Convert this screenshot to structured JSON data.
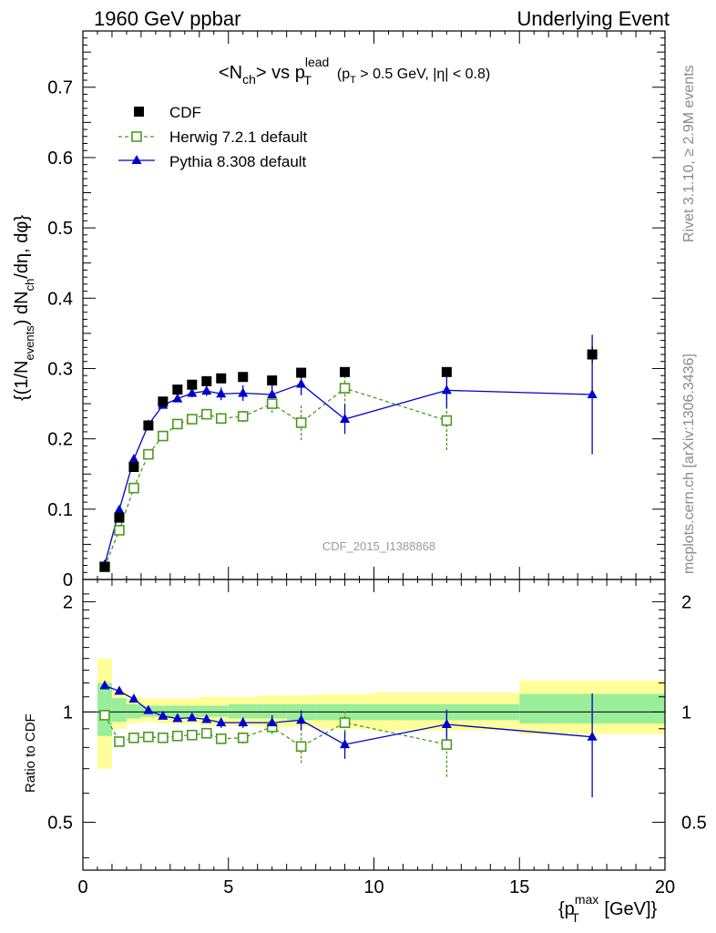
{
  "header": {
    "left": "1960 GeV ppbar",
    "right": "Underlying Event"
  },
  "side_labels": {
    "rivet": "Rivet 3.1.10, ≥ 2.9M events",
    "mcplots": "mcplots.cern.ch [arXiv:1306.3436]"
  },
  "chart_data": {
    "type": "scatter",
    "title": {
      "prefix": "<N",
      "sub1": "ch",
      "mid": "> vs p",
      "sup2": "lead",
      "sub2": "T",
      "cut": "(p",
      "cut_sub": "T",
      "cut_rest": " > 0.5 GeV, |η| < 0.8)"
    },
    "analysis_id": "CDF_2015_I1388868",
    "ylabel": {
      "a": "{(1/N",
      "a_sub": "events",
      "b": ") dN",
      "b_sub": "ch",
      "c": "/dη, dφ}"
    },
    "xlabel": {
      "a": "{p",
      "a_sup": "max",
      "a_sub": "T",
      "b": " [GeV]}"
    },
    "ratio_ylabel": "Ratio to CDF",
    "xlim": [
      0,
      20
    ],
    "ylim": [
      0,
      0.78
    ],
    "ratio_ylim": [
      0.37,
      2.3
    ],
    "x_ticks": [
      "0",
      "5",
      "10",
      "15",
      "20"
    ],
    "y_ticks": [
      "0",
      "0.1",
      "0.2",
      "0.3",
      "0.4",
      "0.5",
      "0.6",
      "0.7"
    ],
    "ratio_ticks": [
      "0.5",
      "1",
      "2"
    ],
    "legend_position": "top-left",
    "series": [
      {
        "name": "CDF",
        "color": "#000000",
        "marker": "square-filled",
        "x": [
          0.75,
          1.25,
          1.75,
          2.25,
          2.75,
          3.25,
          3.75,
          4.25,
          4.75,
          5.5,
          6.5,
          7.5,
          9.0,
          12.5,
          17.5
        ],
        "y": [
          0.018,
          0.088,
          0.16,
          0.219,
          0.253,
          0.27,
          0.277,
          0.282,
          0.286,
          0.288,
          0.283,
          0.294,
          0.295,
          0.295,
          0.32
        ],
        "yerr": [
          0.002,
          0.003,
          0.003,
          0.003,
          0.003,
          0.003,
          0.003,
          0.003,
          0.003,
          0.003,
          0.004,
          0.004,
          0.005,
          0.006,
          0.012
        ]
      },
      {
        "name": "Herwig 7.2.1 default",
        "color": "#4a9a1e",
        "marker": "square-open",
        "line": "dashed",
        "x": [
          0.75,
          1.25,
          1.75,
          2.25,
          2.75,
          3.25,
          3.75,
          4.25,
          4.75,
          5.5,
          6.5,
          7.5,
          9.0,
          12.5
        ],
        "y": [
          0.018,
          0.07,
          0.13,
          0.178,
          0.204,
          0.221,
          0.228,
          0.235,
          0.229,
          0.232,
          0.25,
          0.223,
          0.272,
          0.226
        ],
        "yerr": [
          0.001,
          0.002,
          0.003,
          0.003,
          0.004,
          0.004,
          0.004,
          0.005,
          0.007,
          0.008,
          0.013,
          0.025,
          0.025,
          0.042
        ]
      },
      {
        "name": "Pythia 8.308 default",
        "color": "#0000cc",
        "marker": "triangle-filled",
        "line": "solid",
        "x": [
          0.75,
          1.25,
          1.75,
          2.25,
          2.75,
          3.25,
          3.75,
          4.25,
          4.75,
          5.5,
          6.5,
          7.5,
          9.0,
          12.5,
          17.5
        ],
        "y": [
          0.021,
          0.099,
          0.171,
          0.22,
          0.248,
          0.257,
          0.265,
          0.268,
          0.264,
          0.265,
          0.263,
          0.278,
          0.228,
          0.269,
          0.263
        ],
        "yerr": [
          0.001,
          0.002,
          0.002,
          0.003,
          0.004,
          0.005,
          0.006,
          0.007,
          0.009,
          0.011,
          0.013,
          0.016,
          0.021,
          0.025,
          0.085
        ]
      }
    ],
    "ratio": {
      "bands": {
        "edges": [
          0.5,
          1.0,
          1.5,
          2.0,
          2.5,
          3.0,
          3.5,
          4.0,
          4.5,
          5.0,
          6.0,
          7.0,
          8.0,
          10.0,
          15.0,
          20.0
        ],
        "stat_lo": [
          0.86,
          0.94,
          0.96,
          0.97,
          0.97,
          0.97,
          0.97,
          0.97,
          0.97,
          0.96,
          0.96,
          0.95,
          0.95,
          0.95,
          0.93
        ],
        "stat_hi": [
          1.2,
          1.09,
          1.05,
          1.04,
          1.04,
          1.04,
          1.04,
          1.04,
          1.04,
          1.05,
          1.05,
          1.05,
          1.05,
          1.05,
          1.12
        ],
        "sys_lo": [
          0.7,
          0.9,
          0.93,
          0.94,
          0.93,
          0.93,
          0.93,
          0.92,
          0.92,
          0.92,
          0.91,
          0.91,
          0.9,
          0.89,
          0.87
        ],
        "sys_hi": [
          1.4,
          1.14,
          1.1,
          1.09,
          1.09,
          1.09,
          1.09,
          1.1,
          1.1,
          1.1,
          1.11,
          1.11,
          1.12,
          1.13,
          1.22
        ]
      },
      "herwig": {
        "x": [
          0.75,
          1.25,
          1.75,
          2.25,
          2.75,
          3.25,
          3.75,
          4.25,
          4.75,
          5.5,
          6.5,
          7.5,
          9.0,
          12.5
        ],
        "y": [
          0.98,
          0.83,
          0.85,
          0.855,
          0.85,
          0.86,
          0.865,
          0.875,
          0.845,
          0.85,
          0.91,
          0.805,
          0.935,
          0.815
        ],
        "yerr": [
          0.02,
          0.01,
          0.015,
          0.015,
          0.015,
          0.015,
          0.015,
          0.02,
          0.025,
          0.03,
          0.04,
          0.08,
          0.08,
          0.15
        ]
      },
      "pythia": {
        "x": [
          0.75,
          1.25,
          1.75,
          2.25,
          2.75,
          3.25,
          3.75,
          4.25,
          4.75,
          5.5,
          6.5,
          7.5,
          9.0,
          12.5,
          17.5
        ],
        "y": [
          1.18,
          1.14,
          1.085,
          1.01,
          0.975,
          0.96,
          0.965,
          0.955,
          0.935,
          0.935,
          0.935,
          0.95,
          0.815,
          0.925,
          0.855
        ],
        "yerr": [
          0.01,
          0.01,
          0.01,
          0.01,
          0.01,
          0.02,
          0.02,
          0.02,
          0.03,
          0.03,
          0.045,
          0.06,
          0.07,
          0.09,
          0.27
        ]
      }
    }
  }
}
